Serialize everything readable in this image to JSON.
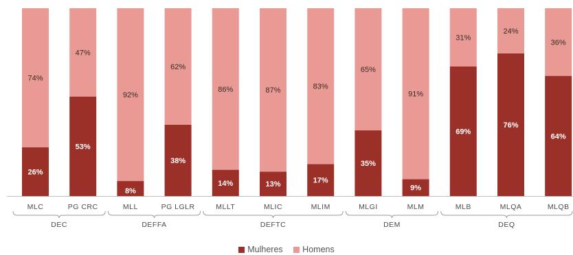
{
  "chart_data": {
    "type": "bar",
    "stacked": true,
    "percent": true,
    "categories": [
      "MLC",
      "PG CRC",
      "MLL",
      "PG LGLR",
      "MLLT",
      "MLIC",
      "MLIM",
      "MLGI",
      "MLM",
      "MLB",
      "MLQA",
      "MLQB"
    ],
    "groups": [
      {
        "label": "DEC",
        "categories": [
          "MLC",
          "PG CRC"
        ]
      },
      {
        "label": "DEFFA",
        "categories": [
          "MLL",
          "PG LGLR"
        ]
      },
      {
        "label": "DEFTC",
        "categories": [
          "MLLT",
          "MLIC",
          "MLIM"
        ]
      },
      {
        "label": "DEM",
        "categories": [
          "MLGI",
          "MLM"
        ]
      },
      {
        "label": "DEQ",
        "categories": [
          "MLB",
          "MLQA",
          "MLQB"
        ]
      }
    ],
    "series": [
      {
        "name": "Mulheres",
        "color": "#9b3028",
        "values": [
          26,
          53,
          8,
          38,
          14,
          13,
          17,
          35,
          9,
          69,
          76,
          64
        ],
        "labels": [
          "26%",
          "53%",
          "8%",
          "38%",
          "14%",
          "13%",
          "17%",
          "35%",
          "9%",
          "69%",
          "76%",
          "64%"
        ]
      },
      {
        "name": "Homens",
        "color": "#e99a94",
        "values": [
          74,
          47,
          92,
          62,
          86,
          87,
          83,
          65,
          91,
          31,
          24,
          36
        ],
        "labels": [
          "74%",
          "47%",
          "92%",
          "62%",
          "86%",
          "87%",
          "83%",
          "65%",
          "91%",
          "31%",
          "24%",
          "36%"
        ]
      }
    ],
    "ylim": [
      0,
      100
    ],
    "legend": "bottom"
  },
  "legend": {
    "items": [
      {
        "label": "Mulheres",
        "color": "#9b3028"
      },
      {
        "label": "Homens",
        "color": "#e99a94"
      }
    ]
  }
}
